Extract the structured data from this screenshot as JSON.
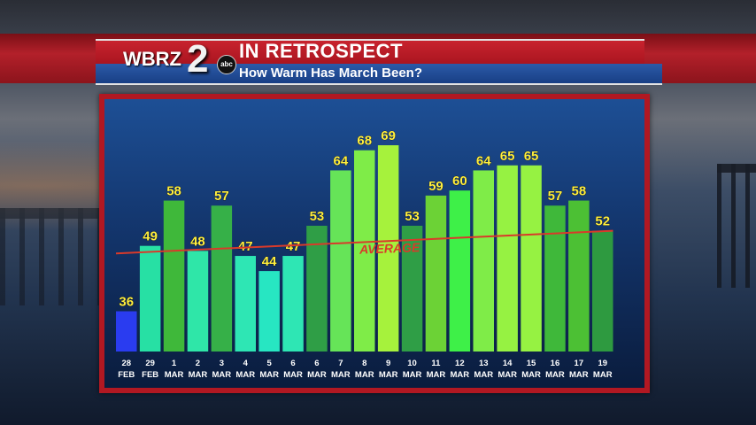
{
  "header": {
    "logo_text": "WBRZ",
    "logo_number": "2",
    "logo_network": "abc",
    "title": "IN RETROSPECT",
    "subtitle": "How Warm Has March Been?"
  },
  "chart_data": {
    "type": "bar",
    "categories": [
      {
        "day": "28",
        "month": "FEB"
      },
      {
        "day": "29",
        "month": "FEB"
      },
      {
        "day": "1",
        "month": "MAR"
      },
      {
        "day": "2",
        "month": "MAR"
      },
      {
        "day": "3",
        "month": "MAR"
      },
      {
        "day": "4",
        "month": "MAR"
      },
      {
        "day": "5",
        "month": "MAR"
      },
      {
        "day": "6",
        "month": "MAR"
      },
      {
        "day": "6",
        "month": "MAR"
      },
      {
        "day": "7",
        "month": "MAR"
      },
      {
        "day": "8",
        "month": "MAR"
      },
      {
        "day": "9",
        "month": "MAR"
      },
      {
        "day": "10",
        "month": "MAR"
      },
      {
        "day": "11",
        "month": "MAR"
      },
      {
        "day": "12",
        "month": "MAR"
      },
      {
        "day": "13",
        "month": "MAR"
      },
      {
        "day": "14",
        "month": "MAR"
      },
      {
        "day": "15",
        "month": "MAR"
      },
      {
        "day": "16",
        "month": "MAR"
      },
      {
        "day": "17",
        "month": "MAR"
      },
      {
        "day": "19",
        "month": "MAR"
      }
    ],
    "values": [
      36,
      49,
      58,
      48,
      57,
      47,
      44,
      47,
      53,
      64,
      68,
      69,
      53,
      59,
      60,
      64,
      65,
      65,
      57,
      58,
      52
    ],
    "bar_colors": [
      "#2a3cf0",
      "#27e0a4",
      "#3fb83a",
      "#2fe6a8",
      "#36b048",
      "#2ee6b4",
      "#27e6c2",
      "#2ee6b4",
      "#2f9e46",
      "#66e458",
      "#7fec48",
      "#a6f23c",
      "#2f9e46",
      "#6cd236",
      "#3ef048",
      "#7fec48",
      "#96f242",
      "#96f242",
      "#3fb83a",
      "#4cc034",
      "#2e9a40"
    ],
    "label_color": "#ffef40",
    "average": {
      "label": "AVERAGE",
      "start": 47.5,
      "end": 52.0,
      "color": "#d93a2a"
    },
    "ylim": [
      28,
      72
    ]
  }
}
